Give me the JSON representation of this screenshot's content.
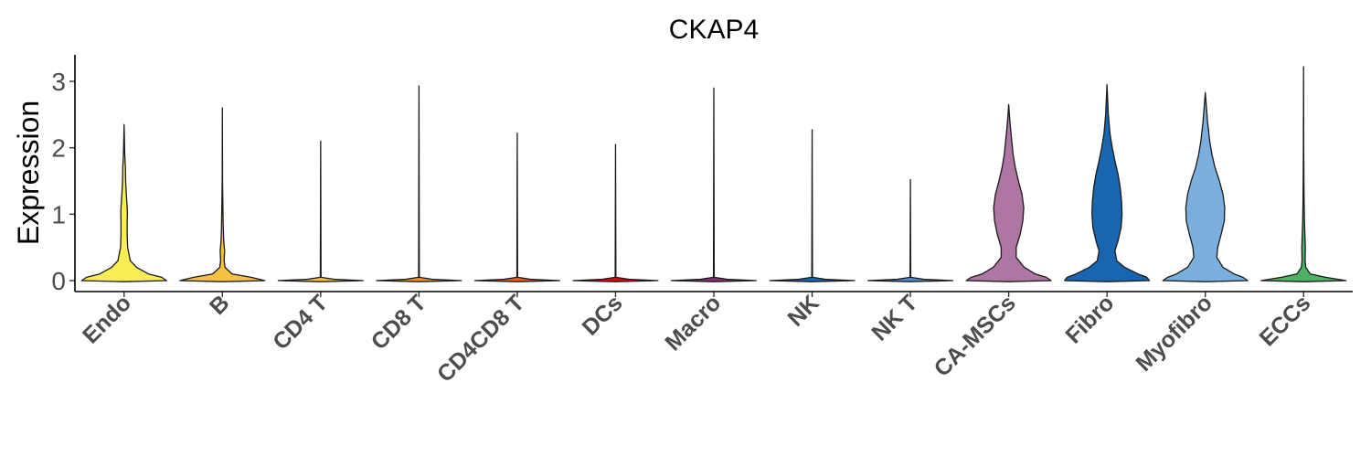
{
  "chart_data": {
    "type": "violin",
    "title": "CKAP4",
    "xlabel": "",
    "ylabel": "Expression",
    "ylim": [
      -0.15,
      3.35
    ],
    "yticks": [
      0,
      1,
      2,
      3
    ],
    "grid": false,
    "legend": "none",
    "categories": [
      "Endo",
      "B",
      "CD4 T",
      "CD8 T",
      "CD4CD8 T",
      "DCs",
      "Macro",
      "NK",
      "NK T",
      "CA-MSCs",
      "Fibro",
      "Myofibro",
      "ECCs"
    ],
    "colors": [
      "#f7ee55",
      "#f6c141",
      "#f6c141",
      "#f1932d",
      "#e8601c",
      "#dc050c",
      "#882e72",
      "#1965b0",
      "#5289c7",
      "#ae76a3",
      "#1965b0",
      "#7bafde",
      "#4eb265"
    ],
    "series": [
      {
        "category": "Endo",
        "max": 2.35,
        "profile": [
          [
            0,
            0.96
          ],
          [
            0.05,
            0.85
          ],
          [
            0.1,
            0.55
          ],
          [
            0.2,
            0.28
          ],
          [
            0.3,
            0.14
          ],
          [
            0.5,
            0.08
          ],
          [
            0.7,
            0.07
          ],
          [
            0.9,
            0.07
          ],
          [
            1.0,
            0.075
          ],
          [
            1.1,
            0.07
          ],
          [
            1.3,
            0.05
          ],
          [
            1.5,
            0.035
          ],
          [
            1.7,
            0.03
          ],
          [
            1.9,
            0.015
          ],
          [
            2.1,
            0.008
          ],
          [
            2.35,
            0
          ]
        ]
      },
      {
        "category": "B",
        "max": 2.6,
        "profile": [
          [
            0,
            0.96
          ],
          [
            0.05,
            0.65
          ],
          [
            0.1,
            0.22
          ],
          [
            0.2,
            0.06
          ],
          [
            0.3,
            0.04
          ],
          [
            0.45,
            0.05
          ],
          [
            0.6,
            0.03
          ],
          [
            0.8,
            0.02
          ],
          [
            1.0,
            0.015
          ],
          [
            1.2,
            0.01
          ],
          [
            1.5,
            0.004
          ],
          [
            2.0,
            0.002
          ],
          [
            2.6,
            0
          ]
        ]
      },
      {
        "category": "CD4 T",
        "max": 2.1,
        "profile": [
          [
            0,
            0.96
          ],
          [
            0.02,
            0.3
          ],
          [
            0.05,
            0.008
          ],
          [
            2.1,
            0
          ]
        ]
      },
      {
        "category": "CD8 T",
        "max": 2.93,
        "profile": [
          [
            0,
            0.96
          ],
          [
            0.02,
            0.3
          ],
          [
            0.05,
            0.008
          ],
          [
            2.93,
            0
          ]
        ]
      },
      {
        "category": "CD4CD8 T",
        "max": 2.22,
        "profile": [
          [
            0,
            0.96
          ],
          [
            0.02,
            0.3
          ],
          [
            0.05,
            0.008
          ],
          [
            2.22,
            0
          ]
        ]
      },
      {
        "category": "DCs",
        "max": 2.05,
        "profile": [
          [
            0,
            0.96
          ],
          [
            0.02,
            0.3
          ],
          [
            0.05,
            0.008
          ],
          [
            2.05,
            0
          ]
        ]
      },
      {
        "category": "Macro",
        "max": 2.9,
        "profile": [
          [
            0,
            0.96
          ],
          [
            0.02,
            0.3
          ],
          [
            0.05,
            0.008
          ],
          [
            2.9,
            0
          ]
        ]
      },
      {
        "category": "NK",
        "max": 2.27,
        "profile": [
          [
            0,
            0.96
          ],
          [
            0.02,
            0.3
          ],
          [
            0.05,
            0.008
          ],
          [
            2.27,
            0
          ]
        ]
      },
      {
        "category": "NK T",
        "max": 1.52,
        "profile": [
          [
            0,
            0.96
          ],
          [
            0.02,
            0.3
          ],
          [
            0.05,
            0.008
          ],
          [
            1.52,
            0
          ]
        ]
      },
      {
        "category": "CA-MSCs",
        "max": 2.65,
        "profile": [
          [
            0,
            0.96
          ],
          [
            0.05,
            0.85
          ],
          [
            0.1,
            0.6
          ],
          [
            0.2,
            0.35
          ],
          [
            0.35,
            0.17
          ],
          [
            0.5,
            0.17
          ],
          [
            0.7,
            0.26
          ],
          [
            0.9,
            0.32
          ],
          [
            1.1,
            0.34
          ],
          [
            1.3,
            0.3
          ],
          [
            1.5,
            0.22
          ],
          [
            1.7,
            0.15
          ],
          [
            1.9,
            0.1
          ],
          [
            2.1,
            0.07
          ],
          [
            2.3,
            0.04
          ],
          [
            2.5,
            0.015
          ],
          [
            2.65,
            0
          ]
        ]
      },
      {
        "category": "Fibro",
        "max": 2.95,
        "profile": [
          [
            0,
            0.96
          ],
          [
            0.05,
            0.9
          ],
          [
            0.1,
            0.7
          ],
          [
            0.2,
            0.4
          ],
          [
            0.3,
            0.22
          ],
          [
            0.45,
            0.18
          ],
          [
            0.6,
            0.25
          ],
          [
            0.8,
            0.32
          ],
          [
            1.0,
            0.34
          ],
          [
            1.2,
            0.33
          ],
          [
            1.4,
            0.3
          ],
          [
            1.6,
            0.25
          ],
          [
            1.8,
            0.18
          ],
          [
            2.0,
            0.12
          ],
          [
            2.2,
            0.07
          ],
          [
            2.5,
            0.03
          ],
          [
            2.95,
            0
          ]
        ]
      },
      {
        "category": "Myofibro",
        "max": 2.83,
        "profile": [
          [
            0,
            0.96
          ],
          [
            0.05,
            0.85
          ],
          [
            0.1,
            0.65
          ],
          [
            0.2,
            0.4
          ],
          [
            0.35,
            0.26
          ],
          [
            0.5,
            0.28
          ],
          [
            0.7,
            0.36
          ],
          [
            0.9,
            0.43
          ],
          [
            1.1,
            0.44
          ],
          [
            1.3,
            0.4
          ],
          [
            1.5,
            0.32
          ],
          [
            1.7,
            0.22
          ],
          [
            1.9,
            0.15
          ],
          [
            2.1,
            0.1
          ],
          [
            2.4,
            0.05
          ],
          [
            2.83,
            0
          ]
        ]
      },
      {
        "category": "ECCs",
        "max": 3.22,
        "profile": [
          [
            0,
            0.96
          ],
          [
            0.05,
            0.5
          ],
          [
            0.1,
            0.15
          ],
          [
            0.2,
            0.05
          ],
          [
            0.3,
            0.035
          ],
          [
            0.5,
            0.04
          ],
          [
            0.7,
            0.03
          ],
          [
            0.9,
            0.02
          ],
          [
            1.2,
            0.012
          ],
          [
            1.5,
            0.008
          ],
          [
            2.0,
            0.004
          ],
          [
            2.5,
            0.002
          ],
          [
            3.22,
            0
          ]
        ]
      }
    ]
  }
}
